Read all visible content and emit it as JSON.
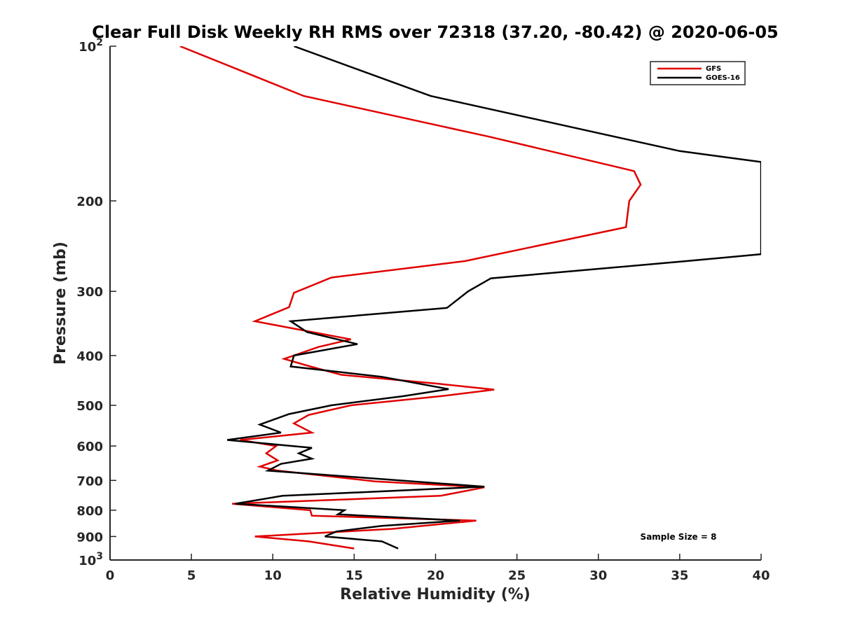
{
  "chart_data": {
    "type": "line",
    "title": "Clear Full Disk Weekly RH RMS over 72318 (37.20, -80.42) @ 2020-06-05",
    "xlabel": "Relative Humidity (%)",
    "ylabel": "Pressure (mb)",
    "xlim": [
      0,
      40
    ],
    "ylim": [
      100,
      1000
    ],
    "yscale": "log",
    "y_reversed": true,
    "grid": false,
    "legend_position": "top-right",
    "x_ticks": [
      0,
      5,
      10,
      15,
      20,
      25,
      30,
      35,
      40
    ],
    "x_tick_labels": [
      "0",
      "5",
      "10",
      "15",
      "20",
      "25",
      "30",
      "35",
      "40"
    ],
    "y_ticks": [
      100,
      200,
      300,
      400,
      500,
      600,
      700,
      800,
      900,
      1000
    ],
    "y_tick_labels": [
      {
        "base": "10",
        "sup": "2"
      },
      {
        "base": "200",
        "sup": ""
      },
      {
        "base": "300",
        "sup": ""
      },
      {
        "base": "400",
        "sup": ""
      },
      {
        "base": "500",
        "sup": ""
      },
      {
        "base": "600",
        "sup": ""
      },
      {
        "base": "700",
        "sup": ""
      },
      {
        "base": "800",
        "sup": ""
      },
      {
        "base": "900",
        "sup": ""
      },
      {
        "base": "10",
        "sup": "3"
      }
    ],
    "series": [
      {
        "name": "GFS",
        "color": "#e00000",
        "points": [
          [
            4.3,
            100
          ],
          [
            11.9,
            125
          ],
          [
            23.3,
            150
          ],
          [
            32.2,
            175
          ],
          [
            32.6,
            186
          ],
          [
            31.9,
            200
          ],
          [
            31.7,
            225
          ],
          [
            21.8,
            262
          ],
          [
            13.6,
            282
          ],
          [
            11.3,
            302
          ],
          [
            11.0,
            322
          ],
          [
            8.9,
            343
          ],
          [
            14.8,
            372
          ],
          [
            12.8,
            385
          ],
          [
            10.7,
            406
          ],
          [
            12.3,
            420
          ],
          [
            14.2,
            436
          ],
          [
            20.2,
            454
          ],
          [
            23.6,
            466
          ],
          [
            20.3,
            480
          ],
          [
            14.8,
            500
          ],
          [
            12.2,
            522
          ],
          [
            11.3,
            542
          ],
          [
            12.4,
            565
          ],
          [
            8.0,
            584
          ],
          [
            10.2,
            600
          ],
          [
            9.6,
            620
          ],
          [
            10.3,
            640
          ],
          [
            9.2,
            658
          ],
          [
            10.3,
            670
          ],
          [
            13.4,
            687
          ],
          [
            16.3,
            703
          ],
          [
            23.0,
            722
          ],
          [
            20.3,
            750
          ],
          [
            7.5,
            777
          ],
          [
            12.3,
            800
          ],
          [
            12.4,
            820
          ],
          [
            22.5,
            838
          ],
          [
            17.3,
            870
          ],
          [
            8.9,
            900
          ],
          [
            12.2,
            920
          ],
          [
            15.0,
            950
          ]
        ]
      },
      {
        "name": "GOES-16",
        "color": "#000000",
        "points": [
          [
            11.3,
            100
          ],
          [
            19.7,
            125
          ],
          [
            35.0,
            160
          ],
          [
            40.0,
            168
          ],
          [
            40.0,
            254
          ],
          [
            35.4,
            262
          ],
          [
            23.4,
            283
          ],
          [
            22.0,
            300
          ],
          [
            20.7,
            323
          ],
          [
            11.1,
            343
          ],
          [
            12.1,
            360
          ],
          [
            15.2,
            380
          ],
          [
            11.3,
            400
          ],
          [
            11.1,
            420
          ],
          [
            16.7,
            440
          ],
          [
            20.8,
            465
          ],
          [
            18.0,
            480
          ],
          [
            13.6,
            500
          ],
          [
            11.0,
            520
          ],
          [
            9.2,
            545
          ],
          [
            10.5,
            565
          ],
          [
            7.2,
            584
          ],
          [
            12.4,
            605
          ],
          [
            11.6,
            620
          ],
          [
            12.4,
            635
          ],
          [
            10.5,
            650
          ],
          [
            9.7,
            670
          ],
          [
            13.8,
            685
          ],
          [
            23.0,
            720
          ],
          [
            10.6,
            750
          ],
          [
            7.7,
            777
          ],
          [
            14.4,
            800
          ],
          [
            14.0,
            815
          ],
          [
            21.5,
            838
          ],
          [
            16.7,
            858
          ],
          [
            13.9,
            880
          ],
          [
            13.2,
            900
          ],
          [
            16.7,
            920
          ],
          [
            17.7,
            950
          ]
        ]
      }
    ],
    "annotation": "Sample Size = 8"
  }
}
